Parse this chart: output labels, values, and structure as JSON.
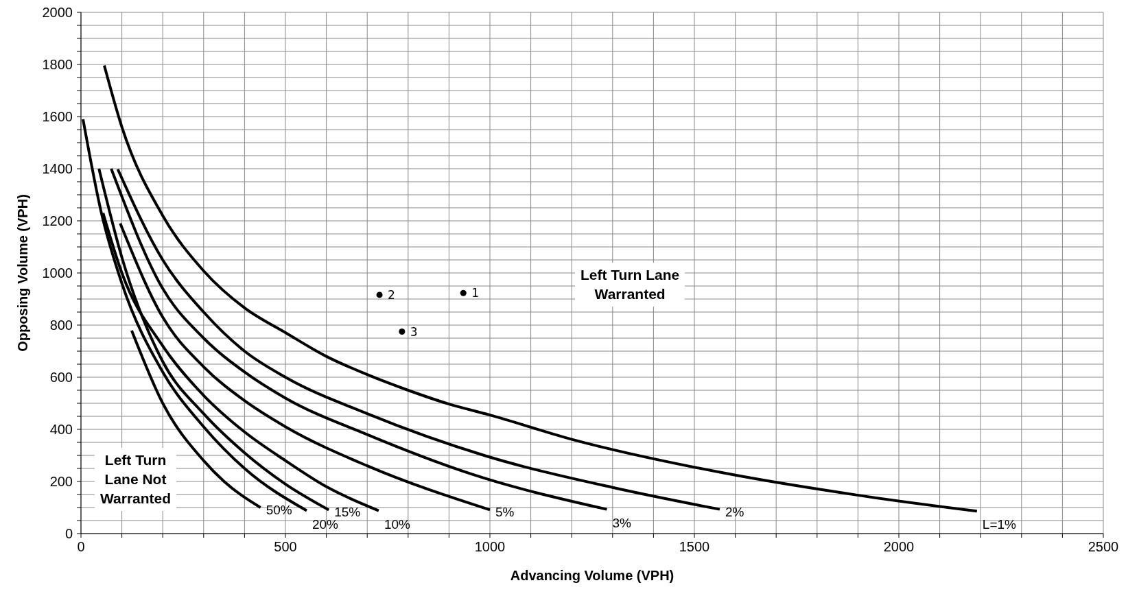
{
  "chart_data": {
    "type": "line",
    "xlabel": "Advancing Volume (VPH)",
    "ylabel": "Opposing Volume (VPH)",
    "xlim": [
      0,
      2500
    ],
    "ylim": [
      0,
      2000
    ],
    "xticks": [
      0,
      {
        "value": 100,
        "label": null
      },
      {
        "value": 200,
        "label": null
      },
      {
        "value": 300,
        "label": null
      },
      {
        "value": 400,
        "label": null
      },
      500,
      {
        "value": 600,
        "label": null
      },
      {
        "value": 700,
        "label": null
      },
      {
        "value": 800,
        "label": null
      },
      {
        "value": 900,
        "label": null
      },
      1000,
      {
        "value": 1100,
        "label": null
      },
      {
        "value": 1200,
        "label": null
      },
      {
        "value": 1300,
        "label": null
      },
      {
        "value": 1400,
        "label": null
      },
      1500,
      {
        "value": 1600,
        "label": null
      },
      {
        "value": 1700,
        "label": null
      },
      {
        "value": 1800,
        "label": null
      },
      {
        "value": 1900,
        "label": null
      },
      2000,
      {
        "value": 2100,
        "label": null
      },
      {
        "value": 2200,
        "label": null
      },
      {
        "value": 2300,
        "label": null
      },
      {
        "value": 2400,
        "label": null
      },
      2500
    ],
    "yticks": [
      0,
      {
        "value": 50,
        "label": null
      },
      {
        "value": 100,
        "label": null
      },
      {
        "value": 150,
        "label": null
      },
      200,
      {
        "value": 250,
        "label": null
      },
      {
        "value": 300,
        "label": null
      },
      {
        "value": 350,
        "label": null
      },
      400,
      {
        "value": 450,
        "label": null
      },
      {
        "value": 500,
        "label": null
      },
      {
        "value": 550,
        "label": null
      },
      600,
      {
        "value": 650,
        "label": null
      },
      {
        "value": 700,
        "label": null
      },
      {
        "value": 750,
        "label": null
      },
      800,
      {
        "value": 850,
        "label": null
      },
      {
        "value": 900,
        "label": null
      },
      {
        "value": 950,
        "label": null
      },
      1000,
      {
        "value": 1050,
        "label": null
      },
      {
        "value": 1100,
        "label": null
      },
      {
        "value": 1150,
        "label": null
      },
      1200,
      {
        "value": 1250,
        "label": null
      },
      {
        "value": 1300,
        "label": null
      },
      {
        "value": 1350,
        "label": null
      },
      1400,
      {
        "value": 1450,
        "label": null
      },
      {
        "value": 1500,
        "label": null
      },
      {
        "value": 1550,
        "label": null
      },
      1600,
      {
        "value": 1650,
        "label": null
      },
      {
        "value": 1700,
        "label": null
      },
      {
        "value": 1750,
        "label": null
      },
      1800,
      {
        "value": 1850,
        "label": null
      },
      {
        "value": 1900,
        "label": null
      },
      {
        "value": 1950,
        "label": null
      },
      2000
    ],
    "grid": true,
    "line_style": "solid",
    "marker": "none",
    "series": [
      {
        "name": "L=1%",
        "color": "#000000",
        "x": [
          57,
          100,
          200,
          300,
          400,
          500,
          600,
          700,
          800,
          900,
          1000,
          1202,
          1567,
          1901,
          2191
        ],
        "values": [
          1796,
          1560,
          1220,
          1008,
          866,
          771,
          680,
          610,
          550,
          497,
          455,
          361,
          234,
          147,
          86
        ]
      },
      {
        "name": "2%",
        "color": "#000000",
        "x": [
          90,
          200,
          300,
          400,
          500,
          700,
          990,
          1300,
          1562
        ],
        "values": [
          1398,
          1050,
          850,
          700,
          600,
          460,
          298,
          177,
          93
        ]
      },
      {
        "name": "3%",
        "color": "#000000",
        "x": [
          74,
          200,
          300,
          400,
          500,
          700,
          956,
          1286
        ],
        "values": [
          1400,
          940,
          750,
          620,
          520,
          380,
          228,
          93
        ]
      },
      {
        "name": "5%",
        "color": "#000000",
        "x": [
          96,
          200,
          300,
          400,
          500,
          700,
          1000
        ],
        "values": [
          1190,
          830,
          640,
          510,
          410,
          260,
          91
        ]
      },
      {
        "name": "10%",
        "color": "#000000",
        "x": [
          54,
          100,
          200,
          300,
          400,
          500,
          600,
          728
        ],
        "values": [
          1230,
          1000,
          720,
          530,
          390,
          280,
          180,
          88
        ]
      },
      {
        "name": "15%",
        "color": "#000000",
        "x": [
          44,
          100,
          200,
          300,
          400,
          500,
          606
        ],
        "values": [
          1400,
          1060,
          660,
          460,
          310,
          190,
          91
        ]
      },
      {
        "name": "20%",
        "color": "#000000",
        "x": [
          5,
          50,
          100,
          200,
          300,
          400,
          552
        ],
        "values": [
          1590,
          1230,
          960,
          620,
          410,
          250,
          88
        ]
      },
      {
        "name": "50%",
        "color": "#000000",
        "x": [
          124,
          200,
          300,
          350,
          439
        ],
        "values": [
          779,
          500,
          280,
          200,
          100
        ]
      },
      {
        "name": "1",
        "type": "scatter",
        "marker": "circle",
        "color": "#000000",
        "x": [
          935
        ],
        "values": [
          923
        ]
      },
      {
        "name": "2",
        "type": "scatter",
        "marker": "circle",
        "color": "#000000",
        "x": [
          730
        ],
        "values": [
          916
        ]
      },
      {
        "name": "3",
        "type": "scatter",
        "marker": "circle",
        "color": "#000000",
        "x": [
          785
        ],
        "values": [
          775
        ]
      }
    ],
    "annotations": [
      "Left Turn Lane\nWarranted",
      "Left Turn\nLane Not\nWarranted"
    ]
  }
}
